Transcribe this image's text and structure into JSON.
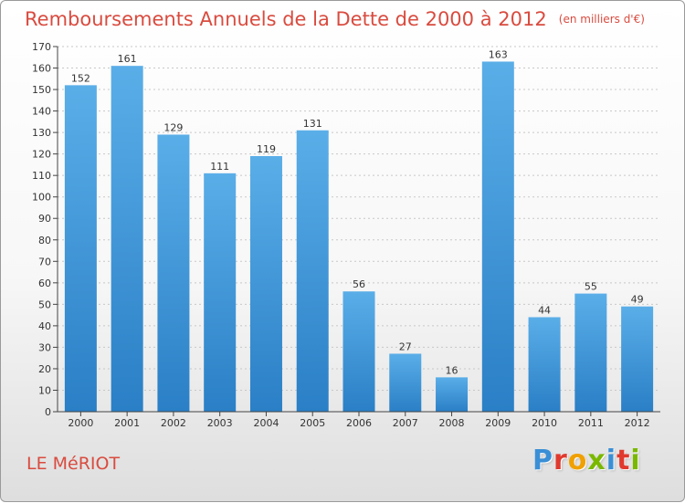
{
  "header": {
    "title": "Remboursements Annuels de la Dette de 2000 à 2012",
    "subtitle": "(en milliers d'€)"
  },
  "footer": {
    "place": "LE MéRIOT",
    "logo": "Proxiti",
    "logo_colors": [
      "#3a8fd6",
      "#e03a2e",
      "#f0a000",
      "#7ab800",
      "#3a8fd6",
      "#e03a2e",
      "#7ab800"
    ]
  },
  "colors": {
    "title": "#d94b3f",
    "bar_top": "#5aaee8",
    "bar_bottom": "#2a7fc6",
    "grid": "#c8c8c8",
    "axis": "#444444"
  },
  "chart_data": {
    "type": "bar",
    "categories": [
      "2000",
      "2001",
      "2002",
      "2003",
      "2004",
      "2005",
      "2006",
      "2007",
      "2008",
      "2009",
      "2010",
      "2011",
      "2012"
    ],
    "values": [
      152,
      161,
      129,
      111,
      119,
      131,
      56,
      27,
      16,
      163,
      44,
      55,
      49
    ],
    "data_labels": [
      "152",
      "161",
      "129",
      "111",
      "119",
      "131",
      "56",
      "27",
      "16",
      "163",
      "44",
      "55",
      "49"
    ],
    "ylim": [
      0,
      170
    ],
    "yticks": [
      0,
      10,
      20,
      30,
      40,
      50,
      60,
      70,
      80,
      90,
      100,
      110,
      120,
      130,
      140,
      150,
      160,
      170
    ],
    "ytick_labels": [
      "0",
      "10",
      "20",
      "30",
      "40",
      "50",
      "60",
      "70",
      "80",
      "90",
      "100",
      "110",
      "120",
      "130",
      "140",
      "150",
      "160",
      "170"
    ],
    "grid": true,
    "xlabel": "",
    "ylabel": ""
  }
}
